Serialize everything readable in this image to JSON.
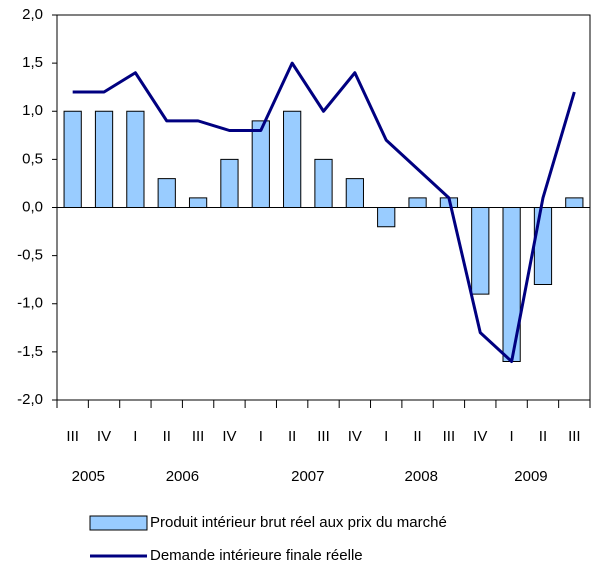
{
  "chart_data": {
    "type": "bar_line",
    "categories": [
      "III",
      "IV",
      "I",
      "II",
      "III",
      "IV",
      "I",
      "II",
      "III",
      "IV",
      "I",
      "II",
      "III",
      "IV",
      "I",
      "II",
      "III"
    ],
    "years": [
      "2005",
      "2006",
      "2007",
      "2008",
      "2009"
    ],
    "series": [
      {
        "name": "Produit intérieur brut réel aux prix du marché",
        "type": "bar",
        "color": "#99ccff",
        "values": [
          1.0,
          1.0,
          1.0,
          0.3,
          0.1,
          0.5,
          0.9,
          1.0,
          0.5,
          0.3,
          -0.2,
          0.1,
          0.1,
          -0.9,
          -1.6,
          -0.8,
          0.1
        ]
      },
      {
        "name": "Demande intérieure finale réelle",
        "type": "line",
        "color": "#000080",
        "values": [
          1.2,
          1.2,
          1.4,
          0.9,
          0.9,
          0.8,
          0.8,
          1.5,
          1.0,
          1.4,
          0.7,
          0.4,
          0.1,
          -1.3,
          -1.6,
          0.1,
          1.2
        ]
      }
    ],
    "ylim": [
      -2,
      2
    ],
    "yticks": [
      {
        "value": -2,
        "label": "-2,0"
      },
      {
        "value": -1.5,
        "label": "-1,5"
      },
      {
        "value": -1,
        "label": "-1,0"
      },
      {
        "value": -0.5,
        "label": "-0,5"
      },
      {
        "value": 0,
        "label": "0,0"
      },
      {
        "value": 0.5,
        "label": "0,5"
      },
      {
        "value": 1,
        "label": "1,0"
      },
      {
        "value": 1.5,
        "label": "1,5"
      },
      {
        "value": 2,
        "label": "2,0"
      }
    ],
    "grid": false
  }
}
